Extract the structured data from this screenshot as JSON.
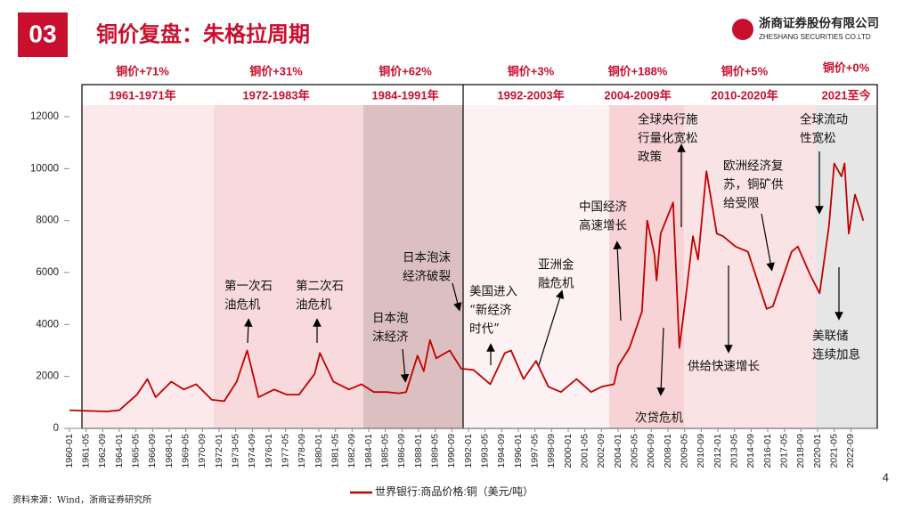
{
  "header": {
    "section": "03",
    "title": "铜价复盘：朱格拉周期",
    "company": "浙商证券股份有限公司",
    "company_en": "ZHESHANG SECURITIES CO.LTD"
  },
  "page_number": "4",
  "source": "资料来源：Wind，浙商证券研究所",
  "chart_data": {
    "type": "line",
    "periods": [
      {
        "change": "铜价+71%",
        "label": "1961-1971年",
        "color": "#fce9eb"
      },
      {
        "change": "铜价+31%",
        "label": "1972-1983年",
        "color": "#f8dadd"
      },
      {
        "change": "铜价+62%",
        "label": "1984-1991年",
        "color": "#dcbfc1"
      },
      {
        "change": "铜价+3%",
        "label": "1992-2003年",
        "color": "#fdf2f3"
      },
      {
        "change": "铜价+188%",
        "label": "2004-2009年",
        "color": "#f7d3d6"
      },
      {
        "change": "铜价+5%",
        "label": "2010-2020年",
        "color": "#fae3e5"
      },
      {
        "change": "铜价+0%",
        "label": "2021至今",
        "color": "#e6e6e6"
      }
    ],
    "x": [
      "1960-01",
      "1963-01",
      "1964-01",
      "1965-06",
      "1966-04",
      "1966-12",
      "1968-03",
      "1969-03",
      "1970-03",
      "1971-06",
      "1972-06",
      "1973-06",
      "1974-04",
      "1975-03",
      "1976-06",
      "1977-06",
      "1978-06",
      "1979-09",
      "1980-02",
      "1981-03",
      "1982-06",
      "1983-06",
      "1984-06",
      "1985-06",
      "1986-06",
      "1987-01",
      "1987-12",
      "1988-06",
      "1988-12",
      "1989-06",
      "1990-07",
      "1991-06",
      "1992-06",
      "1993-10",
      "1994-12",
      "1995-06",
      "1996-06",
      "1997-06",
      "1998-06",
      "1999-06",
      "2000-09",
      "2001-11",
      "2002-09",
      "2003-09",
      "2004-01",
      "2004-12",
      "2005-12",
      "2006-05",
      "2006-12",
      "2007-02",
      "2007-06",
      "2008-06",
      "2008-12",
      "2009-06",
      "2010-01",
      "2010-06",
      "2011-02",
      "2011-12",
      "2012-06",
      "2013-06",
      "2014-06",
      "2015-12",
      "2016-06",
      "2017-12",
      "2018-06",
      "2019-06",
      "2020-03",
      "2020-12",
      "2021-05",
      "2021-12",
      "2022-03",
      "2022-07",
      "2023-01",
      "2023-06",
      "2023-09"
    ],
    "series": [
      {
        "name": "世界银行:商品价格:铜（美元/吨）",
        "color": "#c00000",
        "values": [
          700,
          650,
          700,
          1300,
          1900,
          1200,
          1800,
          1500,
          1700,
          1100,
          1050,
          1800,
          3000,
          1200,
          1500,
          1300,
          1300,
          2100,
          2900,
          1800,
          1500,
          1700,
          1400,
          1400,
          1350,
          1400,
          2800,
          2200,
          3400,
          2700,
          3000,
          2300,
          2250,
          1700,
          2900,
          3000,
          1900,
          2600,
          1600,
          1400,
          1900,
          1400,
          1600,
          1700,
          2400,
          3100,
          4500,
          8000,
          6700,
          5700,
          7500,
          8700,
          3100,
          5000,
          7400,
          6500,
          9900,
          7500,
          7400,
          7000,
          6800,
          4600,
          4700,
          6800,
          7000,
          5900,
          5200,
          7800,
          10200,
          9700,
          10200,
          7500,
          9000,
          8400,
          8000
        ]
      }
    ],
    "ylim": [
      0,
      12000
    ],
    "yticks": [
      0,
      2000,
      4000,
      6000,
      8000,
      10000,
      12000
    ],
    "xticks": [
      "1960-01",
      "1961-05",
      "1962-09",
      "1964-01",
      "1965-05",
      "1966-09",
      "1968-01",
      "1969-05",
      "1970-09",
      "1972-01",
      "1973-05",
      "1974-09",
      "1976-01",
      "1977-05",
      "1978-09",
      "1980-01",
      "1981-05",
      "1982-09",
      "1984-01",
      "1985-05",
      "1986-09",
      "1988-01",
      "1989-05",
      "1990-09",
      "1992-01",
      "1993-05",
      "1994-09",
      "1996-01",
      "1997-05",
      "1998-09",
      "2000-01",
      "2001-05",
      "2002-09",
      "2004-01",
      "2005-05",
      "2006-09",
      "2008-01",
      "2009-05",
      "2010-09",
      "2012-01",
      "2013-05",
      "2014-09",
      "2016-01",
      "2017-05",
      "2018-09",
      "2020-01",
      "2021-05",
      "2022-09"
    ],
    "annotations": [
      {
        "lines": [
          "第一次石",
          "油危机"
        ]
      },
      {
        "lines": [
          "第二次石",
          "油危机"
        ]
      },
      {
        "lines": [
          "日本泡",
          "沫经济"
        ]
      },
      {
        "lines": [
          "日本泡沫",
          "经济破裂"
        ]
      },
      {
        "lines": [
          "美国进入",
          "“新经济",
          "时代”"
        ]
      },
      {
        "lines": [
          "亚洲金",
          "融危机"
        ]
      },
      {
        "lines": [
          "中国经济",
          "高速增长"
        ]
      },
      {
        "lines": [
          "全球央行施",
          "行量化宽松",
          "政策"
        ]
      },
      {
        "lines": [
          "次贷危机"
        ]
      },
      {
        "lines": [
          "欧洲经济复",
          "苏，铜矿供",
          "给受限"
        ]
      },
      {
        "lines": [
          "供给快速增长"
        ]
      },
      {
        "lines": [
          "全球流动",
          "性宽松"
        ]
      },
      {
        "lines": [
          "美联储",
          "连续加息"
        ]
      }
    ]
  }
}
